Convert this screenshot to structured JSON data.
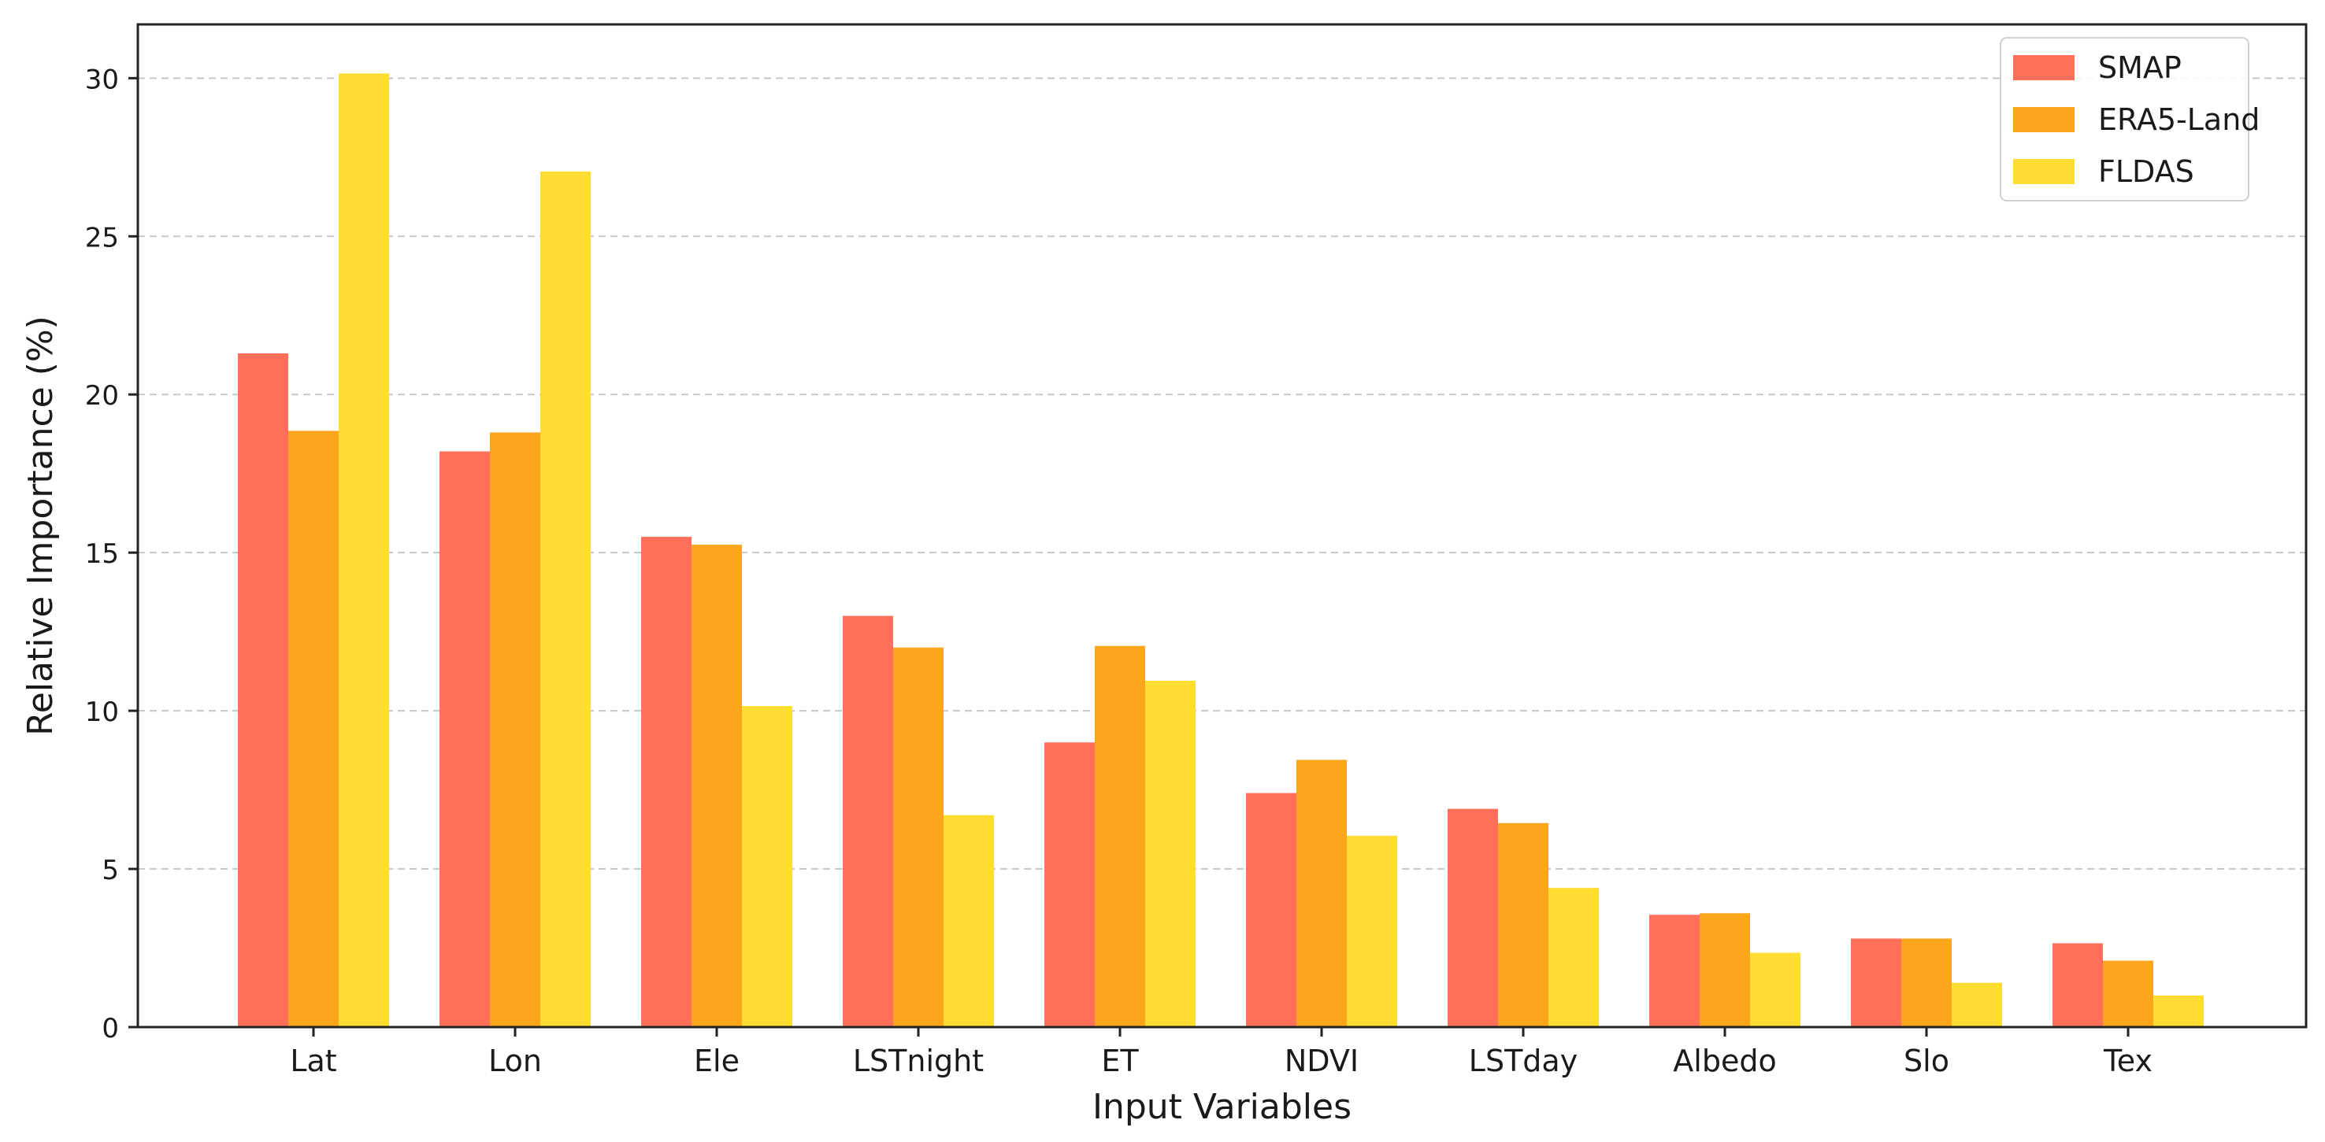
{
  "chart_data": {
    "type": "bar",
    "title": "",
    "xlabel": "Input Variables",
    "ylabel": "Relative Importance (%)",
    "ylim": [
      0,
      31.7
    ],
    "yticks": [
      0,
      5,
      10,
      15,
      20,
      25,
      30
    ],
    "grid": "horizontal dashed",
    "legend_position": "top-right",
    "categories": [
      "Lat",
      "Lon",
      "Ele",
      "LSTnight",
      "ET",
      "NDVI",
      "LSTday",
      "Albedo",
      "Slo",
      "Tex"
    ],
    "series": [
      {
        "name": "SMAP",
        "color": "#FF6F59",
        "values": [
          21.3,
          18.2,
          15.5,
          13.0,
          9.0,
          7.4,
          6.9,
          3.55,
          2.8,
          2.65
        ]
      },
      {
        "name": "ERA5-Land",
        "color": "#FCA61D",
        "values": [
          18.85,
          18.8,
          15.25,
          12.0,
          12.05,
          8.45,
          6.45,
          3.6,
          2.8,
          2.1
        ]
      },
      {
        "name": "FLDAS",
        "color": "#FFDD33",
        "values": [
          30.15,
          27.05,
          10.15,
          6.7,
          10.95,
          6.05,
          4.4,
          2.35,
          1.4,
          1.0
        ]
      }
    ]
  }
}
